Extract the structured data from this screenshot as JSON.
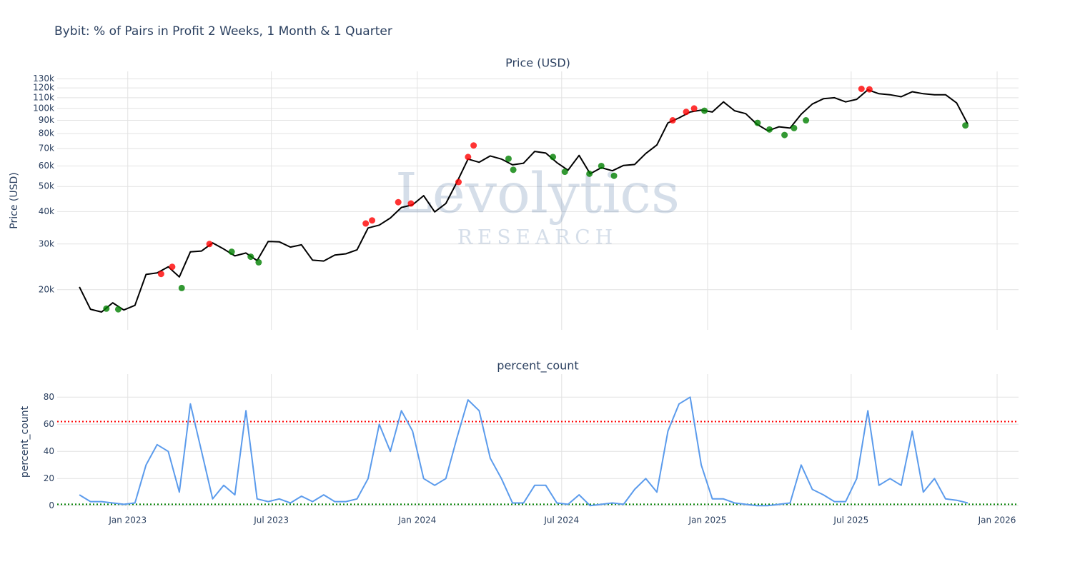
{
  "title": "Bybit: % of Pairs in Profit 2 Weeks, 1 Month & 1 Quarter",
  "watermark": {
    "text": "Levolytics",
    "subtext": "RESEARCH"
  },
  "chart_data": [
    {
      "type": "line",
      "title": "Price (USD)",
      "y_label": "Price (USD)",
      "log_y": true,
      "grid": true,
      "xlim": [
        "2022-10-04",
        "2026-01-28"
      ],
      "xticks": [
        "2023-01-01",
        "2023-07-01",
        "2024-01-01",
        "2024-07-01",
        "2025-01-01",
        "2025-07-01",
        "2026-01-01"
      ],
      "ylim": [
        14000,
        139000
      ],
      "yticks": [
        {
          "value": 20000,
          "label": "20k"
        },
        {
          "value": 30000,
          "label": "30k"
        },
        {
          "value": 40000,
          "label": "40k"
        },
        {
          "value": 50000,
          "label": "50k"
        },
        {
          "value": 60000,
          "label": "60k"
        },
        {
          "value": 70000,
          "label": "70k"
        },
        {
          "value": 80000,
          "label": "80k"
        },
        {
          "value": 90000,
          "label": "90k"
        },
        {
          "value": 100000,
          "label": "100k"
        },
        {
          "value": 110000,
          "label": "110k"
        },
        {
          "value": 120000,
          "label": "120k"
        },
        {
          "value": 130000,
          "label": "130k"
        }
      ],
      "x": [
        "2022-11-01",
        "2022-11-15",
        "2022-11-29",
        "2022-12-13",
        "2022-12-27",
        "2023-01-10",
        "2023-01-24",
        "2023-02-07",
        "2023-02-21",
        "2023-03-07",
        "2023-03-21",
        "2023-04-04",
        "2023-04-18",
        "2023-05-02",
        "2023-05-16",
        "2023-05-30",
        "2023-06-13",
        "2023-06-27",
        "2023-07-11",
        "2023-07-25",
        "2023-08-08",
        "2023-08-22",
        "2023-09-05",
        "2023-09-19",
        "2023-10-03",
        "2023-10-17",
        "2023-10-31",
        "2023-11-14",
        "2023-11-28",
        "2023-12-12",
        "2023-12-26",
        "2024-01-09",
        "2024-01-23",
        "2024-02-06",
        "2024-02-20",
        "2024-03-05",
        "2024-03-19",
        "2024-04-02",
        "2024-04-16",
        "2024-04-30",
        "2024-05-14",
        "2024-05-28",
        "2024-06-11",
        "2024-06-25",
        "2024-07-09",
        "2024-07-23",
        "2024-08-06",
        "2024-08-20",
        "2024-09-03",
        "2024-09-17",
        "2024-10-01",
        "2024-10-15",
        "2024-10-29",
        "2024-11-12",
        "2024-11-26",
        "2024-12-10",
        "2024-12-24",
        "2025-01-07",
        "2025-01-21",
        "2025-02-04",
        "2025-02-18",
        "2025-03-04",
        "2025-03-18",
        "2025-04-01",
        "2025-04-15",
        "2025-04-29",
        "2025-05-13",
        "2025-05-27",
        "2025-06-10",
        "2025-06-24",
        "2025-07-08",
        "2025-07-22",
        "2025-08-05",
        "2025-08-19",
        "2025-09-02",
        "2025-09-16",
        "2025-09-30",
        "2025-10-14",
        "2025-10-28",
        "2025-11-11",
        "2025-11-25"
      ],
      "series": [
        {
          "mode": "lines",
          "color": "#000000",
          "values": [
            20500,
            16800,
            16400,
            17800,
            16700,
            17400,
            22900,
            23200,
            24500,
            22400,
            28000,
            28200,
            30300,
            28700,
            27000,
            27700,
            25900,
            30700,
            30600,
            29200,
            29800,
            26000,
            25800,
            27200,
            27500,
            28500,
            34600,
            35500,
            37800,
            41500,
            42500,
            46100,
            39900,
            43000,
            52000,
            63800,
            62000,
            65600,
            63800,
            60600,
            61500,
            68300,
            67300,
            61800,
            57800,
            65900,
            56000,
            59100,
            57500,
            60300,
            60800,
            67000,
            72300,
            88000,
            92000,
            96900,
            98600,
            96900,
            106000,
            98000,
            95500,
            87000,
            82000,
            85000,
            84000,
            95000,
            104000,
            109000,
            110000,
            106000,
            108500,
            118000,
            114000,
            113000,
            111000,
            116000,
            114000,
            113000,
            113000,
            105000,
            87000
          ]
        },
        {
          "mode": "markers",
          "color": "#ff0000",
          "x": [
            "2023-02-12",
            "2023-02-26",
            "2023-04-14",
            "2023-10-28",
            "2023-11-05",
            "2023-12-08",
            "2023-12-24",
            "2024-02-22",
            "2024-03-05",
            "2024-03-12",
            "2024-11-18",
            "2024-12-05",
            "2024-12-15",
            "2025-07-14",
            "2025-07-24"
          ],
          "values": [
            23000,
            24500,
            30000,
            36000,
            37000,
            43500,
            43000,
            52000,
            65000,
            72000,
            90000,
            97000,
            100000,
            119000,
            118500
          ]
        },
        {
          "mode": "markers",
          "color": "#008000",
          "x": [
            "2022-12-05",
            "2022-12-20",
            "2023-03-10",
            "2023-05-12",
            "2023-06-05",
            "2023-06-15",
            "2024-04-25",
            "2024-05-01",
            "2024-06-20",
            "2024-07-05",
            "2024-08-05",
            "2024-08-20",
            "2024-09-05",
            "2024-12-28",
            "2025-03-05",
            "2025-03-20",
            "2025-04-08",
            "2025-04-20",
            "2025-05-05",
            "2025-11-22"
          ],
          "values": [
            16900,
            16800,
            20300,
            28000,
            26800,
            25500,
            64000,
            58000,
            65000,
            57000,
            56000,
            60000,
            55000,
            98000,
            88000,
            83000,
            79000,
            84000,
            90000,
            86000
          ]
        }
      ]
    },
    {
      "type": "line",
      "title": "percent_count",
      "y_label": "percent_count",
      "log_y": false,
      "grid": true,
      "xlim": [
        "2022-10-04",
        "2026-01-28"
      ],
      "xticks": [
        {
          "value": "2023-01-01",
          "label": "Jan 2023"
        },
        {
          "value": "2023-07-01",
          "label": "Jul 2023"
        },
        {
          "value": "2024-01-01",
          "label": "Jan 2024"
        },
        {
          "value": "2024-07-01",
          "label": "Jul 2024"
        },
        {
          "value": "2025-01-01",
          "label": "Jan 2025"
        },
        {
          "value": "2025-07-01",
          "label": "Jul 2025"
        },
        {
          "value": "2026-01-01",
          "label": "Jan 2026"
        }
      ],
      "ylim": [
        -3,
        97
      ],
      "yticks": [
        0,
        20,
        40,
        60,
        80
      ],
      "hlines": [
        {
          "value": 62,
          "color": "#ff0000"
        },
        {
          "value": 1,
          "color": "#008000"
        }
      ],
      "x": [
        "2022-11-01",
        "2022-11-15",
        "2022-11-29",
        "2022-12-13",
        "2022-12-27",
        "2023-01-10",
        "2023-01-24",
        "2023-02-07",
        "2023-02-21",
        "2023-03-07",
        "2023-03-21",
        "2023-04-04",
        "2023-04-18",
        "2023-05-02",
        "2023-05-16",
        "2023-05-30",
        "2023-06-13",
        "2023-06-27",
        "2023-07-11",
        "2023-07-25",
        "2023-08-08",
        "2023-08-22",
        "2023-09-05",
        "2023-09-19",
        "2023-10-03",
        "2023-10-17",
        "2023-10-31",
        "2023-11-14",
        "2023-11-28",
        "2023-12-12",
        "2023-12-26",
        "2024-01-09",
        "2024-01-23",
        "2024-02-06",
        "2024-02-20",
        "2024-03-05",
        "2024-03-19",
        "2024-04-02",
        "2024-04-16",
        "2024-04-30",
        "2024-05-14",
        "2024-05-28",
        "2024-06-11",
        "2024-06-25",
        "2024-07-09",
        "2024-07-23",
        "2024-08-06",
        "2024-08-20",
        "2024-09-03",
        "2024-09-17",
        "2024-10-01",
        "2024-10-15",
        "2024-10-29",
        "2024-11-12",
        "2024-11-26",
        "2024-12-10",
        "2024-12-24",
        "2025-01-07",
        "2025-01-21",
        "2025-02-04",
        "2025-02-18",
        "2025-03-04",
        "2025-03-18",
        "2025-04-01",
        "2025-04-15",
        "2025-04-29",
        "2025-05-13",
        "2025-05-27",
        "2025-06-10",
        "2025-06-24",
        "2025-07-08",
        "2025-07-22",
        "2025-08-05",
        "2025-08-19",
        "2025-09-02",
        "2025-09-16",
        "2025-09-30",
        "2025-10-14",
        "2025-10-28",
        "2025-11-11",
        "2025-11-25"
      ],
      "series": [
        {
          "mode": "lines",
          "color": "#5b9bec",
          "values": [
            8,
            3,
            3,
            2,
            1,
            2,
            30,
            45,
            40,
            10,
            75,
            40,
            5,
            15,
            8,
            70,
            5,
            3,
            5,
            2,
            7,
            3,
            8,
            3,
            3,
            5,
            20,
            60,
            40,
            70,
            55,
            20,
            15,
            20,
            50,
            78,
            70,
            35,
            20,
            2,
            2,
            15,
            15,
            2,
            1,
            8,
            0,
            1,
            2,
            1,
            12,
            20,
            10,
            55,
            75,
            80,
            30,
            5,
            5,
            2,
            1,
            0,
            0,
            1,
            2,
            30,
            12,
            8,
            3,
            3,
            20,
            70,
            15,
            20,
            15,
            55,
            10,
            20,
            5,
            4,
            2
          ]
        }
      ]
    }
  ]
}
